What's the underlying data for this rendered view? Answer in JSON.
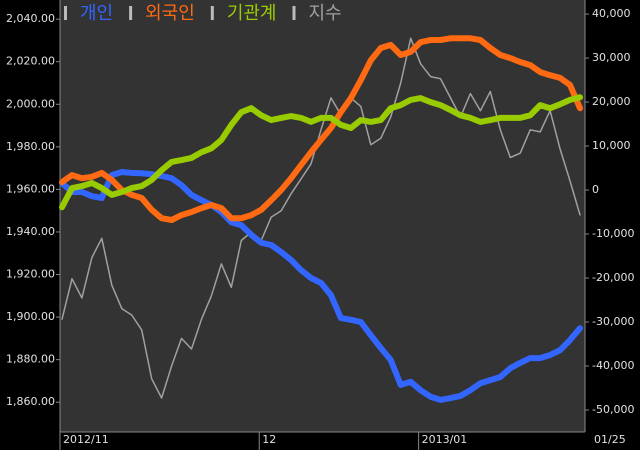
{
  "chart_data": {
    "type": "line",
    "categories": [
      "2012/11",
      null,
      null,
      null,
      null,
      null,
      null,
      null,
      null,
      null,
      null,
      null,
      null,
      null,
      null,
      null,
      null,
      null,
      null,
      null,
      "12",
      null,
      null,
      null,
      null,
      null,
      null,
      null,
      null,
      null,
      null,
      null,
      null,
      null,
      null,
      null,
      "2013/01",
      null,
      null,
      null,
      null,
      null,
      null,
      null,
      null,
      null,
      null,
      null,
      null,
      null,
      null,
      null,
      "01/25"
    ],
    "series": [
      {
        "name": "개인",
        "color": "#3366ff",
        "axis": "y2",
        "values": [
          1600,
          -450,
          -450,
          -1400,
          -1800,
          3400,
          4100,
          3900,
          3800,
          3600,
          3200,
          2700,
          1100,
          -1100,
          -2300,
          -3400,
          -5000,
          -7300,
          -8000,
          -10200,
          -12000,
          -12500,
          -14100,
          -15900,
          -18200,
          -20000,
          -21100,
          -23900,
          -29100,
          -29500,
          -30000,
          -33000,
          -35900,
          -38600,
          -44300,
          -43600,
          -45500,
          -47000,
          -47700,
          -47300,
          -46800,
          -45500,
          -43900,
          -43200,
          -42500,
          -40500,
          -39300,
          -38200,
          -38200,
          -37500,
          -36400,
          -34100,
          -31400
        ]
      },
      {
        "name": "외국인",
        "color": "#ff6a13",
        "axis": "y2",
        "values": [
          1800,
          3400,
          2700,
          3000,
          3900,
          2300,
          0,
          -1100,
          -1800,
          -4500,
          -6400,
          -6800,
          -5700,
          -5000,
          -4100,
          -3400,
          -4100,
          -6400,
          -6400,
          -5700,
          -4500,
          -2300,
          0,
          2700,
          5700,
          8600,
          11400,
          14100,
          17700,
          20900,
          25000,
          29500,
          32300,
          33000,
          30700,
          31400,
          33600,
          34100,
          34100,
          34500,
          34500,
          34500,
          34100,
          32300,
          30700,
          30000,
          29100,
          28400,
          26800,
          26100,
          25500,
          23900,
          18600
        ]
      },
      {
        "name": "기관계",
        "color": "#99cc00",
        "axis": "y2",
        "values": [
          -3900,
          450,
          900,
          1600,
          450,
          -1100,
          -450,
          450,
          900,
          2300,
          4500,
          6400,
          6800,
          7300,
          8600,
          9500,
          11400,
          14800,
          17700,
          18600,
          17000,
          15900,
          16400,
          16800,
          16400,
          15500,
          16400,
          16400,
          14800,
          14100,
          15900,
          15500,
          15900,
          18600,
          19300,
          20500,
          20900,
          20000,
          19300,
          18200,
          17000,
          16400,
          15500,
          15900,
          16400,
          16400,
          16400,
          17000,
          19300,
          18600,
          19500,
          20500,
          21100
        ]
      },
      {
        "name": "지수",
        "color": "#a0a0a0",
        "values": [
          1899,
          1918,
          1909,
          1928,
          1937,
          1915,
          1904,
          1901,
          1894,
          1871,
          1862,
          1877,
          1890,
          1885,
          1899,
          1910,
          1925,
          1914,
          1936,
          1940,
          1936,
          1947,
          1950,
          1958,
          1965,
          1972,
          1988,
          2003,
          1995,
          2003,
          1999,
          1981,
          1984,
          1994,
          2010,
          2031,
          2019,
          2013,
          2012,
          2003,
          1994,
          2005,
          1997,
          2006,
          1988,
          1975,
          1977,
          1988,
          1987,
          1997,
          1979,
          1964,
          1948
        ]
      }
    ],
    "ylim": [
      1846,
      2049
    ],
    "yticks": [
      {
        "value": 1860,
        "label": "1,860.00"
      },
      {
        "value": 1880,
        "label": "1,880.00"
      },
      {
        "value": 1900,
        "label": "1,900.00"
      },
      {
        "value": 1920,
        "label": "1,920.00"
      },
      {
        "value": 1940,
        "label": "1,940.00"
      },
      {
        "value": 1960,
        "label": "1,960.00"
      },
      {
        "value": 1980,
        "label": "1,980.00"
      },
      {
        "value": 2000,
        "label": "2,000.00"
      },
      {
        "value": 2020,
        "label": "2,020.00"
      },
      {
        "value": 2040,
        "label": "2,040.00"
      }
    ],
    "y2lim": [
      -55000,
      43200
    ],
    "y2ticks": [
      {
        "value": 40000,
        "label": "40,000"
      },
      {
        "value": 30000,
        "label": "30,000"
      },
      {
        "value": 20000,
        "label": "20,000"
      },
      {
        "value": 10000,
        "label": "10,000"
      },
      0,
      {
        "value": -10000,
        "label": "-10,000"
      },
      {
        "value": -20000,
        "label": "-20,000"
      },
      {
        "value": -30000,
        "label": "-30,000"
      },
      {
        "value": -40000,
        "label": "-40,000"
      },
      {
        "value": -50000,
        "label": "-50,000"
      }
    ],
    "legend": "top-left"
  }
}
